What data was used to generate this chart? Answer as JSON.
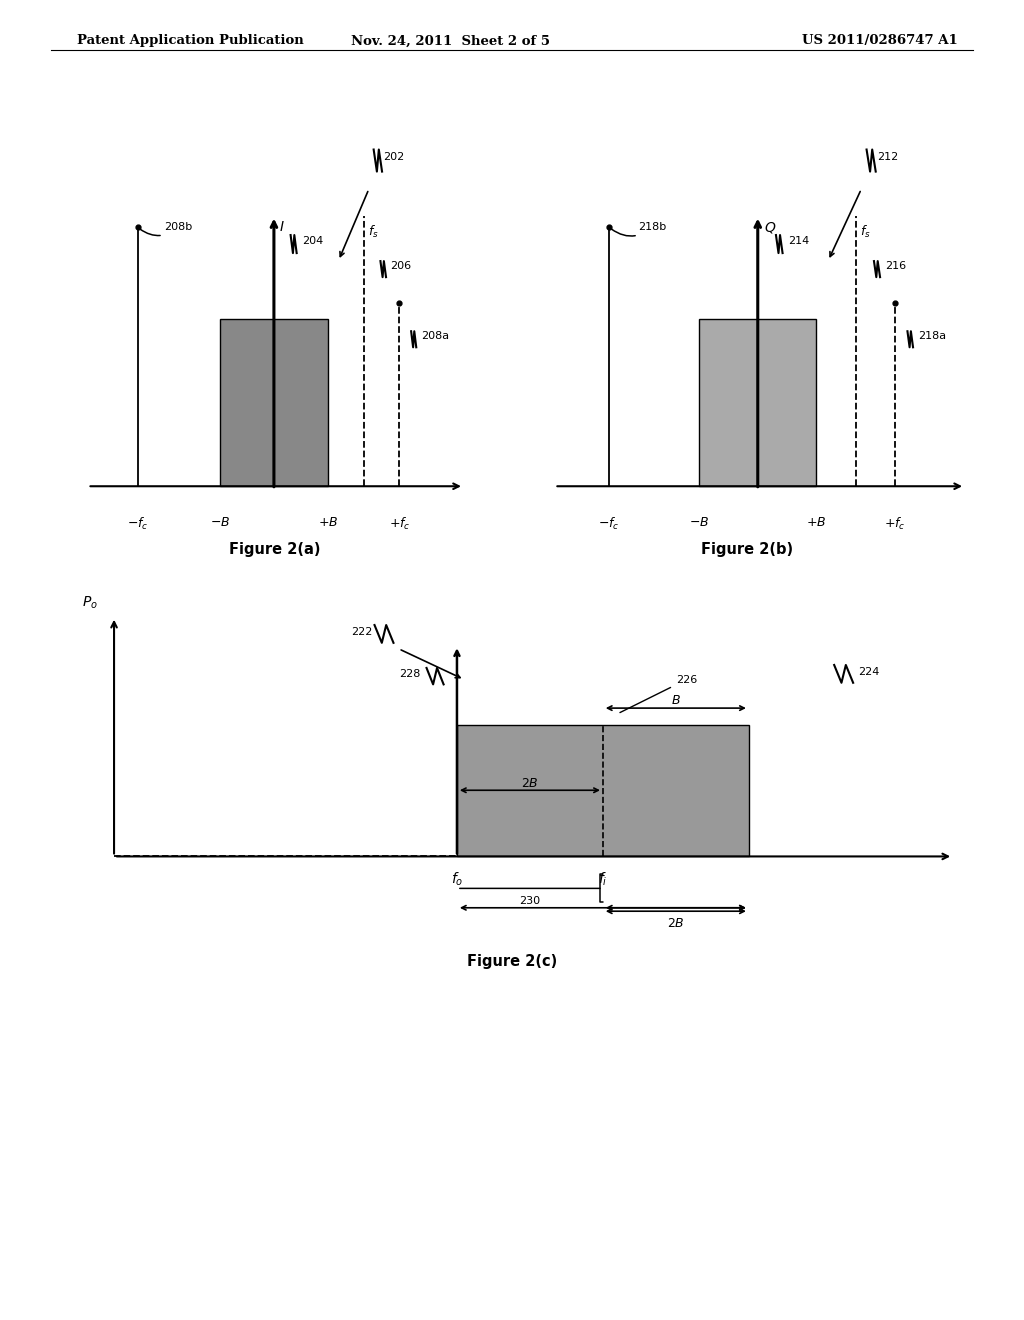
{
  "header_left": "Patent Application Publication",
  "header_mid": "Nov. 24, 2011  Sheet 2 of 5",
  "header_right": "US 2011/0286747 A1",
  "fig2a_title": "Figure 2(a)",
  "fig2b_title": "Figure 2(b)",
  "fig2c_title": "Figure 2(c)",
  "bg_color": "#ffffff",
  "bar_color_a": "#888888",
  "bar_color_b": "#aaaaaa",
  "bar_color_c": "#999999"
}
